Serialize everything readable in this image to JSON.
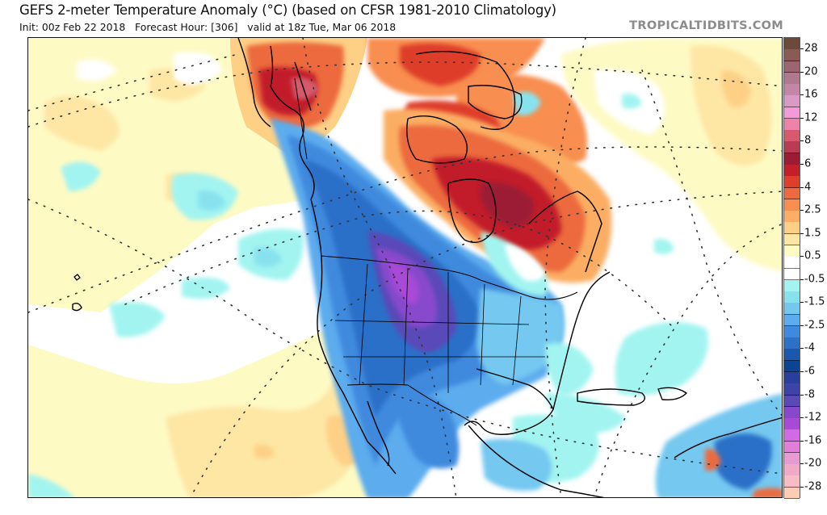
{
  "header": {
    "title": "GEFS 2-meter Temperature Anomaly (°C) (based on CFSR 1981-2010 Climatology)",
    "subtitle": "Init: 00z Feb 22 2018   Forecast Hour: [306]   valid at 18z Tue, Mar 06 2018",
    "init": "00z Feb 22 2018",
    "forecast_hour": "306",
    "valid_time": "18z Tue, Mar 06 2018",
    "watermark": "TROPICALTIDBITS.COM"
  },
  "map": {
    "variable": "2-meter Temperature Anomaly",
    "units": "°C",
    "model": "GEFS",
    "climatology": "CFSR 1981-2010",
    "region": "North America",
    "features": [
      {
        "name": "Northern Plains / Dakotas",
        "anomaly_range": "-8 to -12",
        "color_class": "purple"
      },
      {
        "name": "Western & Central US / Western Canada",
        "anomaly_range": "-2.5 to -6",
        "color_class": "blue"
      },
      {
        "name": "Eastern US",
        "anomaly_range": "-1.5 to -4",
        "color_class": "blue"
      },
      {
        "name": "Quebec / Labrador",
        "anomaly_range": "4 to 8",
        "color_class": "red"
      },
      {
        "name": "Canadian Arctic Archipelago",
        "anomaly_range": "2.5 to 6",
        "color_class": "orange-red"
      },
      {
        "name": "Eastern Siberia / Bering Strait",
        "anomaly_range": "4 to 12",
        "color_class": "red-pink"
      },
      {
        "name": "Greenland",
        "anomaly_range": "2.5 to 6",
        "color_class": "orange"
      },
      {
        "name": "North Atlantic",
        "anomaly_range": "0.5 to 2.5",
        "color_class": "yellow"
      },
      {
        "name": "Northeast Pacific",
        "anomaly_range": "-0.5 to -1.5",
        "color_class": "cyan"
      },
      {
        "name": "Eastern Pacific off Mexico",
        "anomaly_range": "0.5 to 2.5",
        "color_class": "yellow-orange"
      },
      {
        "name": "Caribbean",
        "anomaly_range": "-0.5 to 0.5",
        "color_class": "white-cyan"
      }
    ]
  },
  "colorbar": {
    "labels": [
      "28",
      "20",
      "16",
      "12",
      "8",
      "6",
      "4",
      "2.5",
      "1.5",
      "0.5",
      "-0.5",
      "-1.5",
      "-2.5",
      "-4",
      "-6",
      "-8",
      "-12",
      "-16",
      "-20",
      "-28"
    ],
    "colors": [
      "#6b4a3a",
      "#8a5a55",
      "#9c6670",
      "#b07a8e",
      "#c486a6",
      "#d99ac4",
      "#f59ad8",
      "#ef82a8",
      "#d65a6c",
      "#b83c54",
      "#9c1c34",
      "#c21f2a",
      "#de3e2a",
      "#ec6a3e",
      "#f88e50",
      "#fbae64",
      "#fdd086",
      "#fee6a4",
      "#fefac4",
      "#ffffff",
      "#ffffff",
      "#a2f4f0",
      "#88e2ee",
      "#74c8f0",
      "#5cacee",
      "#3f8ade",
      "#2c70c8",
      "#1a58ac",
      "#0c4494",
      "#28409c",
      "#3c44a8",
      "#5a4ab8",
      "#8848cc",
      "#a84ad8",
      "#d26ae4",
      "#e07ed8",
      "#e89ad2",
      "#f0aac8",
      "#f8bcc4",
      "#fdccb4"
    ]
  }
}
